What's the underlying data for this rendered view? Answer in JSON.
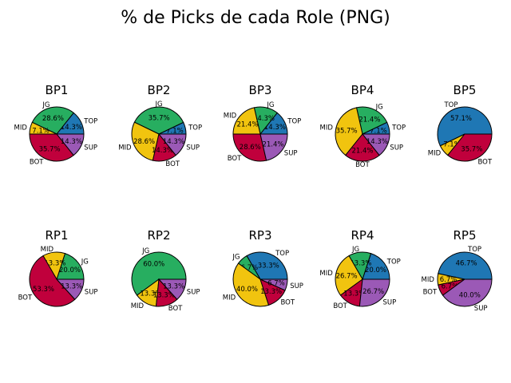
{
  "title": "% de Picks de cada Role (PNG)",
  "colors": {
    "TOP": "#1f77b4",
    "JG": "#27ae60",
    "MID": "#f1c40f",
    "BOT": "#c0003c",
    "SUP": "#9b59b6"
  },
  "chart_data": [
    {
      "type": "pie",
      "title": "BP1",
      "categories": [
        "TOP",
        "JG",
        "MID",
        "BOT",
        "SUP"
      ],
      "values": [
        14.3,
        28.6,
        7.1,
        35.7,
        14.3
      ]
    },
    {
      "type": "pie",
      "title": "BP2",
      "categories": [
        "TOP",
        "JG",
        "MID",
        "BOT",
        "SUP"
      ],
      "values": [
        7.1,
        35.7,
        28.6,
        14.3,
        14.3
      ]
    },
    {
      "type": "pie",
      "title": "BP3",
      "categories": [
        "TOP",
        "JG",
        "MID",
        "BOT",
        "SUP"
      ],
      "values": [
        14.3,
        14.3,
        21.4,
        28.6,
        21.4
      ]
    },
    {
      "type": "pie",
      "title": "BP4",
      "categories": [
        "TOP",
        "JG",
        "MID",
        "BOT",
        "SUP"
      ],
      "values": [
        7.1,
        21.4,
        35.7,
        21.4,
        14.3
      ]
    },
    {
      "type": "pie",
      "title": "BP5",
      "categories": [
        "TOP",
        "MID",
        "BOT"
      ],
      "values": [
        57.1,
        7.1,
        35.7
      ]
    },
    {
      "type": "pie",
      "title": "RP1",
      "categories": [
        "JG",
        "MID",
        "BOT",
        "SUP"
      ],
      "values": [
        20.0,
        13.3,
        53.3,
        13.3
      ]
    },
    {
      "type": "pie",
      "title": "RP2",
      "categories": [
        "JG",
        "MID",
        "BOT",
        "SUP"
      ],
      "values": [
        60.0,
        13.3,
        13.3,
        13.3
      ]
    },
    {
      "type": "pie",
      "title": "RP3",
      "categories": [
        "TOP",
        "JG",
        "MID",
        "BOT",
        "SUP"
      ],
      "values": [
        33.3,
        6.7,
        40.0,
        13.3,
        6.7
      ]
    },
    {
      "type": "pie",
      "title": "RP4",
      "categories": [
        "TOP",
        "JG",
        "MID",
        "BOT",
        "SUP"
      ],
      "values": [
        20.0,
        13.3,
        26.7,
        13.3,
        26.7
      ]
    },
    {
      "type": "pie",
      "title": "RP5",
      "categories": [
        "TOP",
        "MID",
        "BOT",
        "SUP"
      ],
      "values": [
        46.7,
        6.7,
        6.7,
        40.0
      ]
    }
  ]
}
